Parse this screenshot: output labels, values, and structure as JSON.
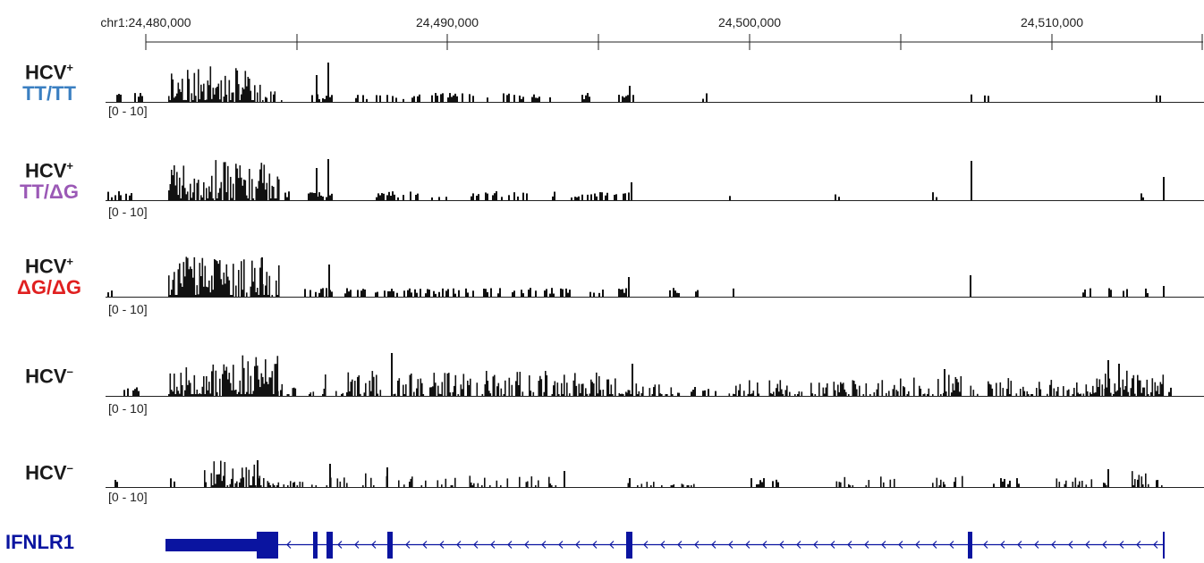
{
  "ruler": {
    "chrom_prefix": "chr1:",
    "tick_labels": [
      "chr1:24,480,000",
      "24,490,000",
      "24,500,000",
      "24,510,000"
    ]
  },
  "range_label": "[0 - 10]",
  "colors": {
    "bars": "#111111",
    "gene": "#0a14a0",
    "tt_tt": "#3a7fc1",
    "tt_dg": "#9b59b6",
    "dg_dg": "#e02020",
    "header": "#1a1a1a"
  },
  "tracks": [
    {
      "line1": "HCV",
      "sup": "+",
      "line2": "TT/TT",
      "line2_color": "#3a7fc1"
    },
    {
      "line1": "HCV",
      "sup": "+",
      "line2": "TT/ΔG",
      "line2_color": "#9b59b6"
    },
    {
      "line1": "HCV",
      "sup": "+",
      "line2": "ΔG/ΔG",
      "line2_color": "#e02020"
    },
    {
      "line1": "HCV",
      "sup": "–",
      "line2": "",
      "line2_color": "#1a1a1a"
    },
    {
      "line1": "HCV",
      "sup": "–",
      "line2": "",
      "line2_color": "#1a1a1a"
    }
  ],
  "gene": {
    "name": "IFNLR1",
    "strand": "minus"
  }
}
